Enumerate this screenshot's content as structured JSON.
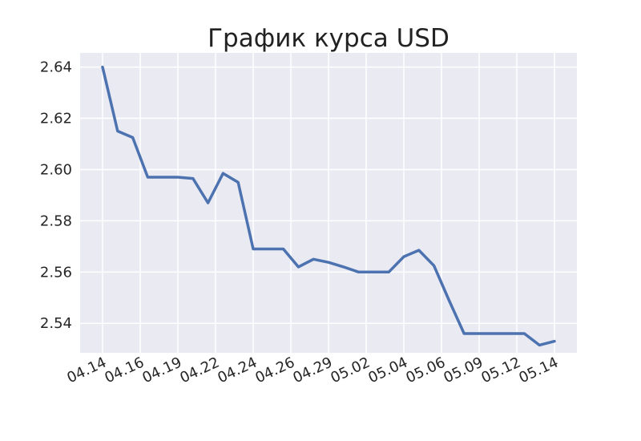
{
  "chart_data": {
    "type": "line",
    "title": "График курса USD",
    "xlabel": "",
    "ylabel": "",
    "x_ticks": [
      "04.14",
      "04.16",
      "04.19",
      "04.22",
      "04.24",
      "04.26",
      "04.29",
      "05.02",
      "05.04",
      "05.06",
      "05.09",
      "05.12",
      "05.14"
    ],
    "y_ticks": [
      "2.54",
      "2.56",
      "2.58",
      "2.60",
      "2.62",
      "2.64"
    ],
    "ylim": [
      2.5285,
      2.6455
    ],
    "grid": true,
    "colors": {
      "background": "#eaeaf2",
      "grid": "#ffffff",
      "line": "#4c72b0"
    },
    "series": [
      {
        "values": [
          2.64,
          2.615,
          2.6125,
          2.597,
          2.597,
          2.597,
          2.5965,
          2.587,
          2.5985,
          2.595,
          2.569,
          2.569,
          2.569,
          2.562,
          2.565,
          2.5638,
          2.562,
          2.56,
          2.56,
          2.56,
          2.566,
          2.5685,
          2.5625,
          2.549,
          2.536,
          2.536,
          2.536,
          2.536,
          2.536,
          2.5315,
          2.533
        ]
      }
    ]
  }
}
